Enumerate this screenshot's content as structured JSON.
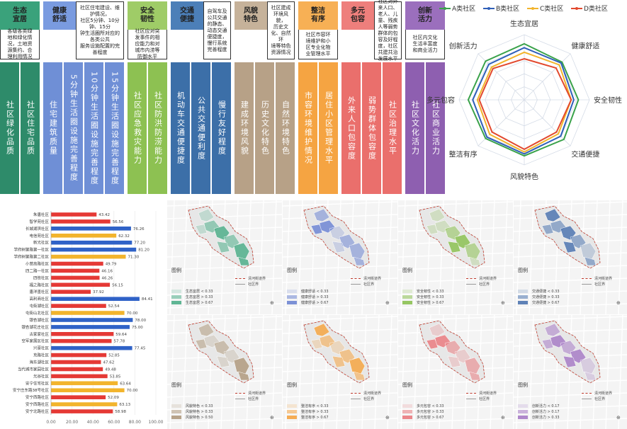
{
  "framework": {
    "dimensions": [
      {
        "title": "生态\n宜居",
        "desc": "各级各类绿\n地和绿化情\n况，土地资\n源集约、合\n理利用情况",
        "indicators": [
          "社区绿化品质",
          "社区住宅品质"
        ],
        "color": "#2e8b6a",
        "title_bg": "#3aa27b"
      },
      {
        "title": "健康\n舒适",
        "desc": "社区住宅建设、维护情况，\n社区5分钟、10分钟、15分\n钟生活圈所对应的各类公共\n服务设施配置的完善程度",
        "indicators": [
          "住宅建筑质量",
          "5分钟生活圈设施完善程度",
          "10分钟生活圈设施完善程度",
          "15分钟生活圈设施完善程度"
        ],
        "color": "#6f8fd6",
        "title_bg": "#7a9be0"
      },
      {
        "title": "安全\n韧性",
        "desc": "社区应对突\n发事件的相\n应能力和对\n城市内涝等\n防御水平",
        "indicators": [
          "社区应急救灾能力",
          "社区防洪防涝能力"
        ],
        "color": "#8dc152",
        "title_bg": "#9fcc67"
      },
      {
        "title": "交通\n便捷",
        "desc": "自驾车及公共交通\n的静态、动态交通\n便捷度，慢行系统\n完善程度",
        "indicators": [
          "机动车交通便捷度",
          "公共交通便利度",
          "慢行友好程度"
        ],
        "color": "#3c6fa8",
        "title_bg": "#4c7fb8"
      },
      {
        "title": "风貌\n特色",
        "desc": "社区建成环境风貌，\n历史文化、自然环\n境等特色资源情况",
        "indicators": [
          "建成环境风貌",
          "历史文化特色",
          "自然环境特色"
        ],
        "color": "#b7a187",
        "title_bg": "#c6b29a"
      },
      {
        "title": "整洁\n有序",
        "desc": "社区市容环\n境维护和小\n区专业化物\n业管理水平",
        "indicators": [
          "市容环境维护情况",
          "居住小区管理水平"
        ],
        "color": "#f5a442",
        "title_bg": "#f7b055"
      },
      {
        "title": "多元\n包容",
        "desc": "社区对外来人口、\n老人、儿童、残疾\n人等弱势群体的包\n容及好程度，社区\n共建共治发展水平",
        "indicators": [
          "外来人口包容度",
          "弱势群体包容度",
          "社区治理水平"
        ],
        "color": "#ea6f6c",
        "title_bg": "#ee7f7c"
      },
      {
        "title": "创新\n活力",
        "desc": "社区内文化\n生活丰富度\n和商业活力",
        "indicators": [
          "社区文化活力",
          "社区商业活力"
        ],
        "color": "#8e5fb0",
        "title_bg": "#9b6fbd"
      }
    ]
  },
  "radar": {
    "legend": [
      "A类社区",
      "B类社区",
      "C类社区",
      "D类社区"
    ],
    "colors": [
      "#3aa24a",
      "#2f5fb8",
      "#f2b42c",
      "#e2492e"
    ],
    "axes": [
      "生态宜居",
      "健康舒适",
      "安全韧性",
      "交通便捷",
      "风貌特色",
      "整洁有序",
      "多元包容",
      "创新活力"
    ],
    "series": [
      {
        "name": "A类社区",
        "values": [
          0.86,
          0.82,
          0.83,
          0.86,
          0.86,
          0.84,
          0.86,
          0.84
        ]
      },
      {
        "name": "B类社区",
        "values": [
          0.8,
          0.8,
          0.76,
          0.79,
          0.83,
          0.81,
          0.79,
          0.77
        ]
      },
      {
        "name": "C类社区",
        "values": [
          0.73,
          0.76,
          0.72,
          0.74,
          0.8,
          0.75,
          0.72,
          0.71
        ]
      },
      {
        "name": "D类社区",
        "values": [
          0.63,
          0.69,
          0.72,
          0.7,
          0.76,
          0.7,
          0.69,
          0.68
        ]
      }
    ]
  },
  "chart_data": {
    "type": "bar",
    "title": "",
    "xlim": [
      0,
      100
    ],
    "xticks": [
      "0.00",
      "20.00",
      "40.00",
      "60.00",
      "80.00",
      "100.00"
    ],
    "categories": [
      "朱唐社区",
      "智学苑社区",
      "长城湖滨社区",
      "电信苑社区",
      "新光社区",
      "学府树第路第一社区",
      "学府树第路第二社区",
      "小营高路社区",
      "四二路一社区",
      "四街社区",
      "福之路社区",
      "唐洋墨社区",
      "高利商社区",
      "屯街湖社区",
      "屯街山北社区",
      "银杏湖社区",
      "银杏湖花庄社区",
      "古家家社区",
      "空军家属区社区",
      "兴豪社区",
      "克路社区",
      "海东湖社区",
      "当代城市家园社区",
      "光谷社区",
      "安宁住宅社区",
      "安宁庄东路38号社区",
      "安宁西路社区",
      "安宁西路社区",
      "安宁北路社区"
    ],
    "values": [
      43.42,
      56.56,
      76.26,
      62.32,
      77.2,
      81.2,
      71.3,
      49.79,
      46.16,
      46.26,
      56.15,
      37.92,
      84.41,
      52.54,
      70.0,
      78.0,
      75.0,
      59.64,
      57.78,
      77.45,
      52.85,
      47.62,
      49.48,
      53.85,
      63.64,
      70.0,
      52.09,
      63.13,
      58.98
    ],
    "colors": [
      "#e53935",
      "#e53935",
      "#2f62c7",
      "#f2b42c",
      "#2f62c7",
      "#2f62c7",
      "#f2b42c",
      "#e53935",
      "#e53935",
      "#e53935",
      "#e53935",
      "#e53935",
      "#2f62c7",
      "#e53935",
      "#f2b42c",
      "#2f62c7",
      "#2f62c7",
      "#e53935",
      "#e53935",
      "#2f62c7",
      "#e53935",
      "#e53935",
      "#e53935",
      "#e53935",
      "#f2b42c",
      "#f2b42c",
      "#e53935",
      "#f2b42c",
      "#e53935"
    ]
  },
  "maps": [
    {
      "legend_title": "图例",
      "boundary": "清河街道界",
      "community": "社区界",
      "classes": [
        "生态宜居 < 0.33",
        "生态宜居 > 0.33",
        "生态宜居 > 0.67"
      ],
      "color": "#4fae8a"
    },
    {
      "legend_title": "图例",
      "boundary": "清河街道界",
      "community": "社区界",
      "classes": [
        "健康舒适 < 0.33",
        "健康舒适 > 0.33",
        "健康舒适 > 0.67"
      ],
      "color": "#6f86d3"
    },
    {
      "legend_title": "图例",
      "boundary": "清河街道界",
      "community": "社区界",
      "classes": [
        "安全韧性 < 0.33",
        "安全韧性 > 0.33",
        "安全韧性 > 0.67"
      ],
      "color": "#8cc152"
    },
    {
      "legend_title": "图例",
      "boundary": "清河街道界",
      "community": "社区界",
      "classes": [
        "交通便捷 < 0.33",
        "交通便捷 > 0.33",
        "交通便捷 > 0.67"
      ],
      "color": "#4f76b0"
    },
    {
      "legend_title": "图例",
      "boundary": "清河街道界",
      "community": "社区界",
      "classes": [
        "风貌特色 < 0.33",
        "风貌特色 > 0.33",
        "风貌特色 > 0.50"
      ],
      "color": "#b09a7e"
    },
    {
      "legend_title": "图例",
      "boundary": "清河街道界",
      "community": "社区界",
      "classes": [
        "整洁有序 < 0.33",
        "整洁有序 > 0.33",
        "整洁有序 > 0.67"
      ],
      "color": "#f5a442"
    },
    {
      "legend_title": "图例",
      "boundary": "清河街道界",
      "community": "社区界",
      "classes": [
        "多元包容 < 0.33",
        "多元包容 > 0.33",
        "多元包容 > 0.67"
      ],
      "color": "#ea7b80"
    },
    {
      "legend_title": "图例",
      "boundary": "清河街道界",
      "community": "社区界",
      "classes": [
        "创新活力 < 0.17",
        "创新活力 > 0.17",
        "创新活力 > 0.33"
      ],
      "color": "#a77cc6"
    }
  ]
}
